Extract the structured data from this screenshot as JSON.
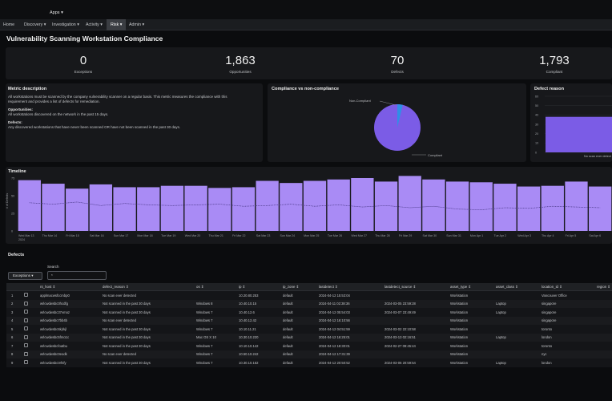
{
  "app": {
    "apps_label": "Apps ▾",
    "nav": [
      {
        "label": "Home"
      },
      {
        "label": "Discovery ▾"
      },
      {
        "label": "Investigation ▾"
      },
      {
        "label": "Activity ▾"
      },
      {
        "label": "Risk ▾"
      },
      {
        "label": "Admin ▾"
      }
    ],
    "title": "Vulnerability Scanning Workstation Compliance"
  },
  "kpis": [
    {
      "value": "0",
      "label": "Exceptions"
    },
    {
      "value": "1,863",
      "label": "Opportunities"
    },
    {
      "value": "70",
      "label": "Defects"
    },
    {
      "value": "1,793",
      "label": "Compliant"
    }
  ],
  "metric": {
    "title": "Metric description",
    "desc1": "All workstations must be scanned by the company vulnerability scanner on a regular basis. This metric measures the compliance with this",
    "desc2": "requirement and provides a list of defects for remediation.",
    "opp_title": "Opportunities:",
    "opp_text": "All workstations discovered on the network in the past 15 days.",
    "def_title": "Defects:",
    "def_text": "Any discovered workstations that have never been scanned OR have not been scanned in the past 30 days."
  },
  "compliance_chart": {
    "title": "Compliance vs non-compliance",
    "label_non": "Non-Compliant",
    "label_comp": "Compliant"
  },
  "defect_reason": {
    "title": "Defect reason",
    "bar_label": "No scan ever detect"
  },
  "timeline": {
    "title": "Timeline",
    "ylabel": "# of Defects"
  },
  "chart_data": [
    {
      "type": "pie",
      "title": "Compliance vs non-compliance",
      "categories": [
        "Non-Compliant",
        "Compliant"
      ],
      "values": [
        70,
        1793
      ],
      "colors": [
        "#2f8fe6",
        "#7b5ce6"
      ]
    },
    {
      "type": "bar",
      "title": "Defect reason",
      "categories": [
        "No scan ever detect"
      ],
      "values": [
        38
      ],
      "ylim": [
        0,
        60
      ],
      "yticks": [
        "0",
        "10",
        "20",
        "30",
        "40",
        "50",
        "60"
      ]
    },
    {
      "type": "bar",
      "title": "Timeline",
      "ylabel": "# of Defects",
      "ylim": [
        0,
        75
      ],
      "yticks": [
        "0",
        "25",
        "50",
        "75"
      ],
      "categories": [
        "Wed Mar 13\n2024",
        "Thu Mar 14",
        "Fri Mar 15",
        "Sat Mar 16",
        "Sun Mar 17",
        "Mon Mar 18",
        "Tue Mar 19",
        "Wed Mar 20",
        "Thu Mar 21",
        "Fri Mar 22",
        "Sat Mar 23",
        "Sun Mar 24",
        "Mon Mar 25",
        "Tue Mar 26",
        "Wed Mar 27",
        "Thu Mar 28",
        "Fri Mar 29",
        "Sat Mar 30",
        "Sun Mar 31",
        "Mon Apr 1",
        "Tue Apr 2",
        "Wed Apr 3",
        "Thu Apr 4",
        "Fri Apr 5",
        "Sat Apr 6"
      ],
      "values": [
        72,
        67,
        60,
        66,
        62,
        62,
        64,
        64,
        61,
        62,
        71,
        68,
        71,
        73,
        75,
        70,
        78,
        73,
        70,
        69,
        67,
        63,
        64,
        70,
        63
      ],
      "trend": [
        40,
        38,
        41,
        36,
        39,
        37,
        36,
        37,
        38,
        35,
        36,
        38,
        35,
        37,
        34,
        36,
        33,
        35,
        31,
        30,
        33,
        32,
        35,
        34,
        33
      ],
      "bar_color": "#a98bf5"
    }
  ],
  "defects": {
    "title": "Defects",
    "exceptions_btn": "Exceptions ▾",
    "search_label": "Search",
    "search_value": "*",
    "columns": [
      "nt_host ⇕",
      "defect_reason ⇕",
      "os ⇕",
      "ip ⇕",
      "ip_zone ⇕",
      "lastdetect ⇕",
      "lastdetect_source ⇕",
      "asset_type ⇕",
      "asset_class ⇕",
      "location_id ⇕",
      "region ⇕"
    ],
    "rows": [
      {
        "n": "1",
        "host": "applmacwsfccmbp0",
        "reason": "No scan ever detected",
        "os": "",
        "ip": "10.20.80.253",
        "zone": "default",
        "last": "2024-04-12 15:53:04",
        "src": "",
        "type": "Workstation",
        "class": "",
        "loc": "Vancouver Office"
      },
      {
        "n": "2",
        "host": "wrlcwdwsbc0hcdfg",
        "reason": "Not scanned in the past 30 days",
        "os": "Windows 8",
        "ip": "10.40.10.15",
        "zone": "default",
        "last": "2024-04-11 02:38:36",
        "src": "2024-03-05 23:59:28",
        "type": "Workstation",
        "class": "Laptop",
        "loc": "singapore"
      },
      {
        "n": "3",
        "host": "wrlcwdwsbc37vmoz",
        "reason": "Not scanned in the past 30 days",
        "os": "Windows 7",
        "ip": "10.40.12.6",
        "zone": "default",
        "last": "2024-04-12 05:54:03",
        "src": "2024-03-07 23:49:49",
        "type": "Workstation",
        "class": "Laptop",
        "loc": "singapore"
      },
      {
        "n": "4",
        "host": "wrlcwdwsbc7bb4b",
        "reason": "No scan ever detected",
        "os": "Windows 7",
        "ip": "10.40.12.42",
        "zone": "default",
        "last": "2024-04-12 16:10:56",
        "src": "",
        "type": "Workstation",
        "class": "",
        "loc": "singapore"
      },
      {
        "n": "5",
        "host": "wrlcwdwsbc6kjrkjl",
        "reason": "Not scanned in the past 30 days",
        "os": "Windows 7",
        "ip": "10.10.11.21",
        "zone": "default",
        "last": "2024-04-12 04:51:59",
        "src": "2024-03-02 22:10:58",
        "type": "Workstation",
        "class": "",
        "loc": "toronto"
      },
      {
        "n": "6",
        "host": "wrlcwdwsbc5fmo1c",
        "reason": "Not scanned in the past 30 days",
        "os": "Mac OS X 10",
        "ip": "10.30.10.220",
        "zone": "default",
        "last": "2024-04-12 16:25:01",
        "src": "2024-03-13 02:16:51",
        "type": "Workstation",
        "class": "Laptop",
        "loc": "london"
      },
      {
        "n": "7",
        "host": "wrlcwdwsbcfoatbu",
        "reason": "Not scanned in the past 30 days",
        "os": "Windows 7",
        "ip": "10.10.10.142",
        "zone": "default",
        "last": "2024-04-12 18:30:01",
        "src": "2024-02-27 09:45:44",
        "type": "Workstation",
        "class": "",
        "loc": "toronto"
      },
      {
        "n": "8",
        "host": "wrlcwdwsbc0eodk",
        "reason": "No scan ever detected",
        "os": "Windows 7",
        "ip": "10.50.10.242",
        "zone": "default",
        "last": "2024-04-12 17:31:39",
        "src": "",
        "type": "Workstation",
        "class": "",
        "loc": "nyc"
      },
      {
        "n": "9",
        "host": "wrlcwdwsbc0rfsfy",
        "reason": "Not scanned in the past 30 days",
        "os": "Windows 7",
        "ip": "10.30.10.162",
        "zone": "default",
        "last": "2024-04-12 20:50:52",
        "src": "2024-03-06 20:59:54",
        "type": "Workstation",
        "class": "Laptop",
        "loc": "london"
      }
    ]
  }
}
